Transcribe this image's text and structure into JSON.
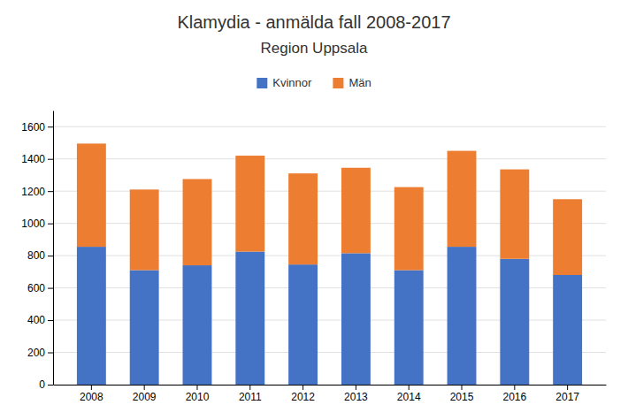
{
  "chart_data": {
    "type": "bar",
    "stacked": true,
    "title": "Klamydia - anmälda fall 2008-2017",
    "subtitle": "Region Uppsala",
    "categories": [
      "2008",
      "2009",
      "2010",
      "2011",
      "2012",
      "2013",
      "2014",
      "2015",
      "2016",
      "2017"
    ],
    "series": [
      {
        "name": "Kvinnor",
        "color": "#4472C4",
        "values": [
          855,
          710,
          740,
          825,
          745,
          815,
          710,
          855,
          780,
          680
        ]
      },
      {
        "name": "Män",
        "color": "#ED7D31",
        "values": [
          640,
          500,
          535,
          595,
          565,
          530,
          515,
          595,
          555,
          470
        ]
      }
    ],
    "ylim": [
      0,
      1700
    ],
    "yticks": [
      0,
      200,
      400,
      600,
      800,
      1000,
      1200,
      1400,
      1600
    ],
    "grid": true,
    "legend": "top"
  }
}
